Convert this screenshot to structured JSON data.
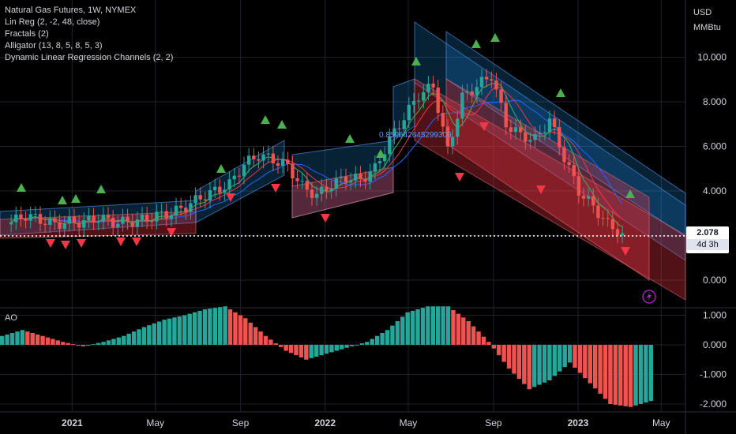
{
  "legend": {
    "title": "Natural Gas Futures, 1W, NYMEX",
    "indicators": [
      "Lin Reg (2, -2, 48, close)",
      "Fractals (2)",
      "Alligator (13, 8, 5, 8, 5, 3)",
      "Dynamic Linear Regression Channels (2, 2)"
    ]
  },
  "currency": {
    "line1": "USD",
    "line2": "MMBtu"
  },
  "last_price": {
    "value": "2.078",
    "countdown": "4d 3h"
  },
  "ao_label": "AO",
  "annotation": "0.859642645299309",
  "colors": {
    "bull": "#26a69a",
    "bear": "#ef5350",
    "fractal_up": "#4caf50",
    "fractal_down": "#f23645",
    "channel_up": "#2196f3",
    "channel_down": "#f23645",
    "grid": "#1e222d",
    "text": "#d1d4dc"
  },
  "chart_data": [
    {
      "type": "candlestick",
      "title": "Natural Gas Futures, 1W, NYMEX",
      "ylabel": "USD MMBtu",
      "ylim": [
        -0.6,
        11.0
      ],
      "y_ticks": [
        "0.000",
        "2.000",
        "4.000",
        "6.000",
        "8.000",
        "10.000"
      ],
      "x_ticks": [
        "2021",
        "May",
        "Sep",
        "2022",
        "May",
        "Sep",
        "2023",
        "May"
      ],
      "x_range": [
        "2020-09-28",
        "2023-06-05"
      ],
      "grid": true,
      "series": [
        {
          "name": "Natural Gas Futures",
          "x": [
            "2020-10-05",
            "2020-10-26",
            "2020-11-16",
            "2020-12-07",
            "2020-12-28",
            "2021-01-18",
            "2021-02-08",
            "2021-03-01",
            "2021-03-22",
            "2021-04-12",
            "2021-05-03",
            "2021-05-24",
            "2021-06-14",
            "2021-07-05",
            "2021-07-26",
            "2021-08-16",
            "2021-09-06",
            "2021-09-27",
            "2021-10-18",
            "2021-11-08",
            "2021-11-29",
            "2021-12-20",
            "2022-01-10",
            "2022-01-31",
            "2022-02-21",
            "2022-03-14",
            "2022-04-04",
            "2022-04-25",
            "2022-05-16",
            "2022-06-06",
            "2022-06-27",
            "2022-07-18",
            "2022-08-08",
            "2022-08-29",
            "2022-09-19",
            "2022-10-10",
            "2022-10-31",
            "2022-11-21",
            "2022-12-12",
            "2023-01-02",
            "2023-01-23",
            "2023-02-13",
            "2023-03-06"
          ],
          "close": [
            2.6,
            2.9,
            2.7,
            2.5,
            2.6,
            2.6,
            2.8,
            2.6,
            2.6,
            2.7,
            2.9,
            3.0,
            3.3,
            3.7,
            4.0,
            4.3,
            5.2,
            5.6,
            5.4,
            5.1,
            4.2,
            3.8,
            4.3,
            4.6,
            4.5,
            5.0,
            6.3,
            7.3,
            8.3,
            8.7,
            5.8,
            8.2,
            8.7,
            9.2,
            7.0,
            6.5,
            6.3,
            7.2,
            5.5,
            4.0,
            3.3,
            2.5,
            2.1
          ]
        }
      ]
    },
    {
      "type": "bar",
      "title": "AO",
      "ylim": [
        -2.1,
        1.3
      ],
      "y_ticks": [
        "-2.000",
        "-1.000",
        "0.000",
        "1.000"
      ],
      "values": [
        0.3,
        0.5,
        0.3,
        0.1,
        -0.05,
        0.1,
        0.3,
        0.6,
        0.85,
        1.0,
        1.2,
        1.3,
        0.9,
        0.3,
        -0.2,
        -0.5,
        -0.3,
        -0.1,
        0.1,
        0.5,
        1.1,
        1.3,
        1.3,
        0.8,
        0.1,
        -0.8,
        -1.5,
        -1.2,
        -0.6,
        -1.3,
        -2.0,
        -2.1,
        -1.9
      ]
    }
  ]
}
